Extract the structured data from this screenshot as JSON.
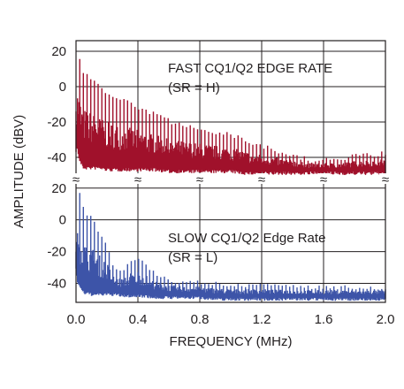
{
  "chart_data": [
    {
      "type": "line",
      "panel": "upper",
      "annotation": [
        "FAST CQ1/Q2 EDGE RATE",
        "(SR = H)"
      ],
      "series": [
        {
          "color": "#a0112b",
          "x": [
            0.0,
            0.01,
            0.02,
            0.03,
            0.05,
            0.1,
            0.15,
            0.2,
            0.25,
            0.3,
            0.4,
            0.5,
            0.6,
            0.7,
            0.8,
            0.9,
            1.0,
            1.1,
            1.2,
            1.3,
            1.4,
            1.5,
            1.6,
            1.7,
            1.8,
            1.9,
            2.0
          ],
          "peak": [
            -14,
            22,
            20,
            14,
            10,
            6,
            2,
            -2,
            -4,
            -6,
            -10,
            -14,
            -18,
            -20,
            -22,
            -24,
            -26,
            -29,
            -32,
            -35,
            -37,
            -40,
            -40,
            -40,
            -38,
            -37,
            -36
          ],
          "floor": [
            -35,
            -34,
            -40,
            -42,
            -45,
            -45,
            -45,
            -46,
            -46,
            -46,
            -46,
            -46,
            -47,
            -47,
            -47,
            -47,
            -47,
            -48,
            -48,
            -48,
            -48,
            -48,
            -48,
            -48,
            -48,
            -48,
            -48
          ]
        }
      ],
      "yticks": [
        20,
        0,
        -20,
        -40
      ],
      "ylim": [
        -52,
        26
      ]
    },
    {
      "type": "line",
      "panel": "lower",
      "annotation": [
        "SLOW CQ1/Q2 Edge Rate",
        "(SR = L)"
      ],
      "series": [
        {
          "color": "#3d54a8",
          "x": [
            0.0,
            0.01,
            0.02,
            0.03,
            0.05,
            0.1,
            0.15,
            0.2,
            0.25,
            0.3,
            0.35,
            0.4,
            0.45,
            0.5,
            0.6,
            0.7,
            0.8,
            0.9,
            1.0,
            1.2,
            1.4,
            1.6,
            1.8,
            2.0
          ],
          "peak": [
            -20,
            22,
            20,
            12,
            8,
            2,
            -6,
            -14,
            -30,
            -30,
            -24,
            -22,
            -26,
            -32,
            -36,
            -38,
            -38,
            -39,
            -40,
            -40,
            -41,
            -41,
            -41,
            -41
          ],
          "floor": [
            -30,
            -38,
            -40,
            -42,
            -45,
            -46,
            -46,
            -46,
            -46,
            -47,
            -47,
            -47,
            -47,
            -48,
            -48,
            -48,
            -48,
            -49,
            -49,
            -49,
            -49,
            -49,
            -49,
            -49
          ]
        }
      ],
      "yticks": [
        20,
        0,
        -20,
        -40
      ],
      "ylim": [
        -52,
        26
      ]
    }
  ],
  "axes": {
    "xlabel": "FREQUENCY (MHz)",
    "ylabel": "AMPLITUDE (dBV)",
    "xticks": [
      "0.0",
      "0.4",
      "0.8",
      "1.2",
      "1.6",
      "2.0"
    ],
    "xlim": [
      0,
      2.0
    ],
    "grid": true,
    "break_symbol": "≈"
  }
}
